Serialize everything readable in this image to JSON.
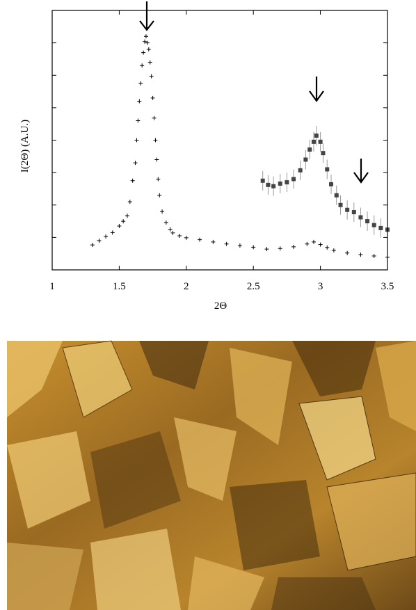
{
  "chart_data": {
    "type": "scatter",
    "x_label": "2Θ",
    "y_label": "I(2Θ) (A.U.)",
    "xlim": [
      1,
      3.5
    ],
    "xticks": [
      1,
      1.5,
      2,
      2.5,
      3,
      3.5
    ],
    "ylim": [
      0,
      8
    ],
    "yticks": [
      1,
      2,
      3,
      4,
      5,
      6,
      7
    ],
    "ytick_labels": false,
    "series": [
      {
        "color": "#000000",
        "marker": "plus",
        "x": [
          1.3,
          1.35,
          1.4,
          1.45,
          1.5,
          1.53,
          1.56,
          1.58,
          1.6,
          1.62,
          1.63,
          1.64,
          1.65,
          1.66,
          1.67,
          1.68,
          1.69,
          1.7,
          1.71,
          1.72,
          1.73,
          1.74,
          1.75,
          1.76,
          1.77,
          1.78,
          1.79,
          1.8,
          1.82,
          1.85,
          1.88,
          1.9,
          1.95,
          2.0,
          2.1,
          2.2,
          2.3,
          2.4,
          2.5,
          2.6,
          2.7,
          2.8,
          2.9,
          2.95,
          3.0,
          3.05,
          3.1,
          3.2,
          3.3,
          3.4,
          3.5
        ],
        "values": [
          0.77,
          0.9,
          1.03,
          1.15,
          1.35,
          1.5,
          1.67,
          2.1,
          2.75,
          3.3,
          4.0,
          4.6,
          5.2,
          5.75,
          6.3,
          6.7,
          7.04,
          7.2,
          7.0,
          6.8,
          6.4,
          5.97,
          5.3,
          4.68,
          4.0,
          3.4,
          2.8,
          2.3,
          1.8,
          1.46,
          1.25,
          1.14,
          1.05,
          0.99,
          0.93,
          0.86,
          0.8,
          0.75,
          0.7,
          0.64,
          0.66,
          0.71,
          0.8,
          0.86,
          0.78,
          0.69,
          0.6,
          0.52,
          0.47,
          0.43,
          0.39
        ]
      },
      {
        "color": "#444444",
        "marker": "square",
        "x": [
          2.57,
          2.61,
          2.65,
          2.7,
          2.75,
          2.8,
          2.85,
          2.89,
          2.92,
          2.95,
          2.97,
          3.0,
          3.02,
          3.05,
          3.08,
          3.12,
          3.15,
          3.2,
          3.25,
          3.3,
          3.35,
          3.4,
          3.45,
          3.5
        ],
        "values": [
          2.75,
          2.62,
          2.58,
          2.66,
          2.7,
          2.8,
          3.07,
          3.4,
          3.71,
          3.95,
          4.14,
          3.95,
          3.6,
          3.1,
          2.64,
          2.3,
          2.0,
          1.85,
          1.78,
          1.62,
          1.5,
          1.38,
          1.29,
          1.24
        ],
        "errors": [
          0.3,
          0.3,
          0.3,
          0.3,
          0.3,
          0.3,
          0.3,
          0.3,
          0.3,
          0.3,
          0.3,
          0.3,
          0.3,
          0.3,
          0.3,
          0.3,
          0.3,
          0.3,
          0.3,
          0.3,
          0.3,
          0.3,
          0.3,
          0.3
        ]
      }
    ]
  }
}
